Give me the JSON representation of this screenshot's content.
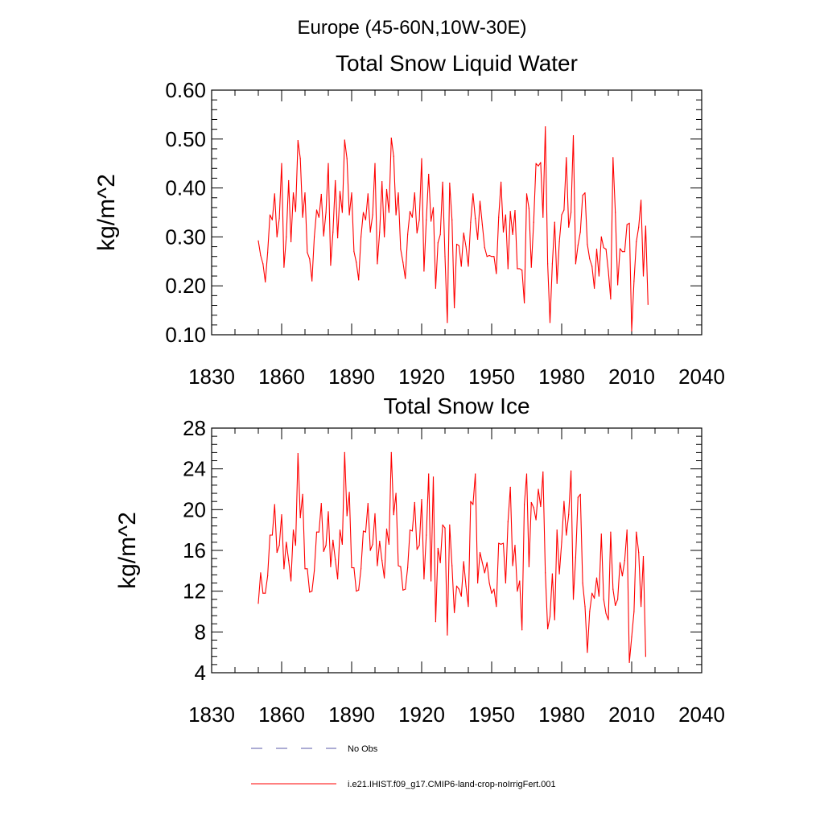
{
  "figure": {
    "supertitle": "Europe (45-60N,10W-30E)"
  },
  "chart_data": [
    {
      "type": "line",
      "title": "Total Snow Liquid Water",
      "xlabel": "",
      "ylabel": "kg/m^2",
      "xlim": [
        1830,
        2040
      ],
      "ylim": [
        0.1,
        0.6
      ],
      "x_ticks": [
        "1830",
        "1860",
        "1890",
        "1920",
        "1950",
        "1980",
        "2010",
        "2040"
      ],
      "y_ticks": [
        "0.10",
        "0.20",
        "0.30",
        "0.40",
        "0.50",
        "0.60"
      ],
      "x_start": 1850,
      "series": [
        {
          "name": "i.e21.IHIST.f09_g17.CMIP6-land-crop-noIrrigFert.001",
          "color": "#ff0000",
          "values": [
            0.292,
            0.262,
            0.245,
            0.208,
            0.268,
            0.345,
            0.335,
            0.388,
            0.3,
            0.338,
            0.45,
            0.238,
            0.3,
            0.415,
            0.29,
            0.39,
            0.352,
            0.497,
            0.46,
            0.34,
            0.39,
            0.268,
            0.255,
            0.21,
            0.3,
            0.355,
            0.34,
            0.387,
            0.302,
            0.35,
            0.45,
            0.242,
            0.31,
            0.415,
            0.298,
            0.393,
            0.35,
            0.498,
            0.46,
            0.345,
            0.39,
            0.27,
            0.248,
            0.212,
            0.3,
            0.35,
            0.335,
            0.388,
            0.31,
            0.345,
            0.45,
            0.245,
            0.31,
            0.413,
            0.3,
            0.397,
            0.35,
            0.502,
            0.465,
            0.345,
            0.39,
            0.275,
            0.248,
            0.215,
            0.305,
            0.352,
            0.34,
            0.39,
            0.308,
            0.335,
            0.46,
            0.23,
            0.335,
            0.428,
            0.332,
            0.36,
            0.195,
            0.288,
            0.305,
            0.412,
            0.26,
            0.125,
            0.41,
            0.335,
            0.155,
            0.285,
            0.282,
            0.24,
            0.308,
            0.28,
            0.24,
            0.33,
            0.388,
            0.338,
            0.295,
            0.373,
            0.325,
            0.278,
            0.26,
            0.262,
            0.26,
            0.26,
            0.225,
            0.34,
            0.412,
            0.31,
            0.345,
            0.235,
            0.352,
            0.305,
            0.354,
            0.235,
            0.235,
            0.232,
            0.165,
            0.388,
            0.358,
            0.238,
            0.33,
            0.45,
            0.445,
            0.452,
            0.34,
            0.525,
            0.245,
            0.125,
            0.245,
            0.33,
            0.205,
            0.29,
            0.345,
            0.355,
            0.462,
            0.32,
            0.35,
            0.507,
            0.245,
            0.283,
            0.31,
            0.385,
            0.39,
            0.285,
            0.255,
            0.24,
            0.195,
            0.275,
            0.22,
            0.3,
            0.278,
            0.275,
            0.23,
            0.173,
            0.462,
            0.35,
            0.202,
            0.276,
            0.27,
            0.27,
            0.325,
            0.328,
            0.108,
            0.21,
            0.29,
            0.32,
            0.375,
            0.22,
            0.322,
            0.162
          ]
        }
      ]
    },
    {
      "type": "line",
      "title": "Total Snow Ice",
      "xlabel": "",
      "ylabel": "kg/m^2",
      "xlim": [
        1830,
        2040
      ],
      "ylim": [
        4,
        28
      ],
      "x_ticks": [
        "1830",
        "1860",
        "1890",
        "1920",
        "1950",
        "1980",
        "2010",
        "2040"
      ],
      "y_ticks": [
        "4",
        "8",
        "12",
        "16",
        "20",
        "24",
        "28"
      ],
      "x_start": 1850,
      "series": [
        {
          "name": "i.e21.IHIST.f09_g17.CMIP6-land-crop-noIrrigFert.001",
          "color": "#ff0000",
          "values": [
            10.8,
            13.8,
            11.8,
            11.8,
            13.5,
            17.5,
            17.5,
            20.5,
            15.8,
            16.5,
            19.5,
            14.2,
            16.8,
            15.0,
            13.0,
            18.0,
            16.5,
            25.5,
            19.2,
            21.5,
            14.2,
            14.2,
            11.9,
            12.0,
            14.0,
            17.8,
            17.8,
            20.6,
            15.9,
            16.5,
            19.8,
            14.4,
            17.0,
            15.1,
            13.2,
            18.0,
            16.6,
            25.6,
            19.4,
            21.7,
            14.3,
            14.3,
            12.0,
            12.1,
            14.2,
            17.9,
            17.8,
            20.6,
            16.0,
            16.6,
            19.6,
            14.5,
            16.9,
            15.0,
            13.3,
            18.1,
            16.6,
            25.6,
            19.5,
            21.6,
            14.5,
            14.4,
            12.1,
            12.2,
            14.3,
            18.0,
            17.9,
            20.7,
            16.1,
            16.5,
            21.0,
            13.2,
            17.5,
            23.5,
            13.0,
            23.2,
            9.0,
            16.2,
            14.8,
            18.5,
            18.2,
            7.7,
            18.5,
            14.5,
            9.9,
            12.5,
            12.2,
            11.5,
            14.9,
            12.5,
            10.5,
            20.8,
            20.5,
            23.5,
            12.8,
            15.8,
            14.8,
            13.8,
            14.8,
            12.8,
            11.8,
            12.2,
            10.5,
            16.7,
            16.6,
            16.7,
            12.8,
            18.8,
            22.2,
            14.5,
            16.5,
            12.0,
            13.0,
            8.2,
            20.5,
            23.5,
            14.4,
            20.7,
            20.2,
            19.0,
            22.0,
            20.3,
            23.7,
            13.8,
            8.3,
            9.5,
            13.7,
            9.2,
            18.0,
            13.7,
            16.8,
            20.8,
            17.5,
            19.5,
            23.8,
            11.2,
            15.3,
            21.2,
            21.5,
            12.8,
            10.5,
            6.0,
            10.0,
            11.8,
            11.3,
            13.3,
            11.5,
            17.6,
            11.2,
            9.8,
            9.2,
            17.8,
            12.2,
            10.6,
            11.2,
            14.8,
            13.5,
            15.0,
            18.0,
            5.0,
            7.5,
            10.0,
            17.8,
            15.8,
            10.5,
            15.4,
            5.6
          ]
        }
      ]
    }
  ],
  "legend": {
    "entries": [
      {
        "label": "No Obs",
        "color": "#5a5aa8",
        "style": "dashed"
      },
      {
        "label": "i.e21.IHIST.f09_g17.CMIP6-land-crop-noIrrigFert.001",
        "color": "#ff0000",
        "style": "solid"
      }
    ]
  }
}
